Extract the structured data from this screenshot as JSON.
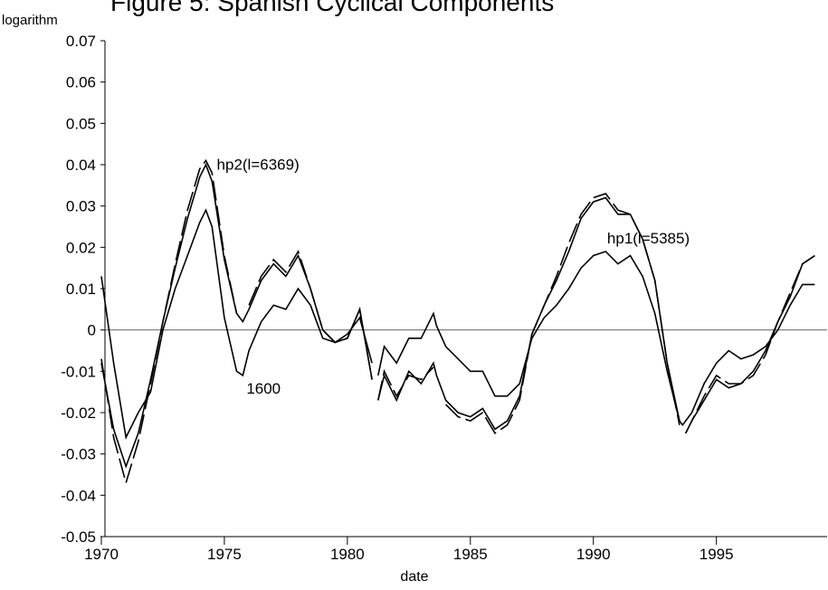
{
  "chart_data": {
    "type": "line",
    "title": "Figure 5: Spanish Cyclical Components",
    "y_label": "logarithm",
    "x_label": "date",
    "x": [
      1970,
      1970.5,
      1971,
      1971.5,
      1972,
      1972.5,
      1973,
      1973.5,
      1974,
      1974.25,
      1974.5,
      1975,
      1975.5,
      1975.75,
      1976,
      1976.5,
      1977,
      1977.5,
      1978,
      1978.5,
      1979,
      1979.5,
      1980,
      1980.5,
      1981,
      1981.125,
      1981.25,
      1981.5,
      1982,
      1982.5,
      1983,
      1983.5,
      1983.625,
      1984,
      1984.5,
      1985,
      1985.5,
      1986,
      1986.5,
      1987,
      1987.5,
      1988,
      1988.5,
      1989,
      1989.5,
      1990,
      1990.5,
      1991,
      1991.5,
      1992,
      1992.5,
      1993,
      1993.5,
      1993.625,
      1993.75,
      1994,
      1994.5,
      1995,
      1995.5,
      1996,
      1996.5,
      1997,
      1997.5,
      1998,
      1998.5,
      1999
    ],
    "series": [
      {
        "name": "1600",
        "color": "#000000",
        "dash": false,
        "values": [
          0.013,
          -0.008,
          -0.026,
          -0.02,
          -0.015,
          0.0,
          0.01,
          0.018,
          0.026,
          0.029,
          0.025,
          0.003,
          -0.01,
          -0.011,
          -0.005,
          0.002,
          0.006,
          0.005,
          0.01,
          0.006,
          -0.002,
          -0.003,
          -0.001,
          0.003,
          -0.008,
          null,
          -0.011,
          -0.004,
          -0.008,
          -0.002,
          -0.002,
          0.004,
          0.001,
          -0.004,
          -0.007,
          -0.01,
          -0.01,
          -0.016,
          -0.016,
          -0.013,
          -0.002,
          0.003,
          0.006,
          0.01,
          0.015,
          0.018,
          0.019,
          0.016,
          0.018,
          0.013,
          0.004,
          -0.01,
          -0.022,
          -0.023,
          -0.022,
          -0.02,
          -0.013,
          -0.008,
          -0.005,
          -0.007,
          -0.006,
          -0.004,
          0.0,
          0.006,
          0.011,
          0.011
        ]
      },
      {
        "name": "hp1(l=5385)",
        "color": "#000000",
        "dash": false,
        "values": [
          -0.008,
          -0.024,
          -0.033,
          -0.025,
          -0.012,
          0.002,
          0.015,
          0.027,
          0.037,
          0.04,
          0.036,
          0.017,
          0.004,
          0.002,
          0.005,
          0.012,
          0.016,
          0.013,
          0.018,
          0.01,
          0.0,
          -0.003,
          -0.002,
          0.005,
          -0.012,
          null,
          -0.017,
          -0.011,
          -0.017,
          -0.01,
          -0.013,
          -0.008,
          -0.011,
          -0.017,
          -0.02,
          -0.021,
          -0.019,
          -0.024,
          -0.022,
          -0.016,
          -0.001,
          0.006,
          0.012,
          0.019,
          0.027,
          0.031,
          0.032,
          0.028,
          0.028,
          0.022,
          0.012,
          -0.008,
          -0.022,
          null,
          -0.025,
          -0.022,
          -0.017,
          -0.012,
          -0.014,
          -0.013,
          -0.01,
          -0.005,
          0.002,
          0.008,
          0.016,
          0.018
        ]
      },
      {
        "name": "hp2(l=6369)",
        "color": "#000000",
        "dash": true,
        "values": [
          -0.007,
          -0.026,
          -0.037,
          -0.027,
          -0.013,
          0.002,
          0.016,
          0.029,
          0.039,
          0.041,
          0.038,
          0.018,
          0.004,
          null,
          0.006,
          0.013,
          0.017,
          0.014,
          0.019,
          0.01,
          0.0,
          -0.003,
          -0.002,
          0.005,
          -0.012,
          null,
          -0.017,
          -0.01,
          -0.016,
          -0.011,
          -0.012,
          -0.009,
          null,
          -0.018,
          -0.021,
          -0.022,
          -0.02,
          -0.025,
          -0.023,
          -0.017,
          -0.001,
          0.006,
          0.013,
          0.021,
          0.028,
          0.032,
          0.033,
          0.029,
          0.028,
          0.022,
          0.012,
          -0.008,
          -0.023,
          null,
          -0.025,
          -0.022,
          -0.016,
          -0.011,
          -0.013,
          -0.013,
          -0.011,
          -0.006,
          0.002,
          0.009,
          0.016,
          0.018
        ]
      }
    ],
    "xlim": [
      1970,
      1999.5
    ],
    "xticks": [
      1970,
      1975,
      1980,
      1985,
      1990,
      1995
    ],
    "ylim": [
      -0.05,
      0.07
    ],
    "yticks": [
      -0.05,
      -0.04,
      -0.03,
      -0.02,
      -0.01,
      0,
      0.01,
      0.02,
      0.03,
      0.04,
      0.05,
      0.06,
      0.07
    ],
    "zero_line": true
  }
}
